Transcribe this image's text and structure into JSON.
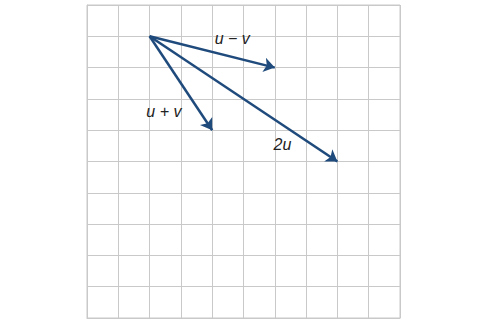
{
  "chart_data": {
    "type": "vector",
    "xlim": [
      0,
      10
    ],
    "ylim": [
      0,
      10
    ],
    "xticks": [
      0,
      1,
      2,
      3,
      4,
      5,
      6,
      7,
      8,
      9,
      10
    ],
    "yticks": [
      0,
      1,
      2,
      3,
      4,
      5,
      6,
      7,
      8,
      9,
      10
    ],
    "grid": true,
    "tick_labels": false,
    "color": "#1f4a7c",
    "vectors": [
      {
        "label": "u − v",
        "start": [
          2,
          9
        ],
        "end": [
          6,
          8
        ]
      },
      {
        "label": "u + v",
        "start": [
          2,
          9
        ],
        "end": [
          4,
          6
        ]
      },
      {
        "label": "2u",
        "start": [
          2,
          9
        ],
        "end": [
          8,
          5
        ]
      }
    ]
  }
}
